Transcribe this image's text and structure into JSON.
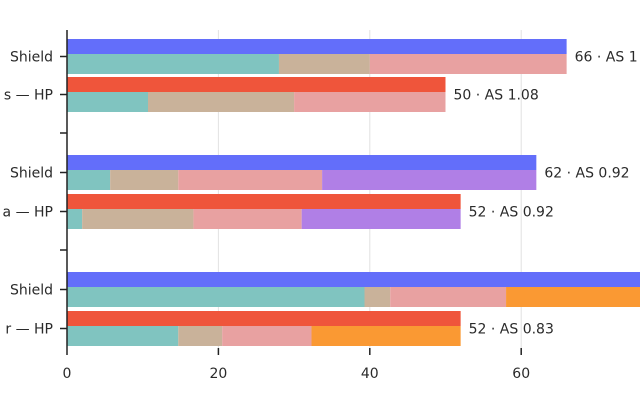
{
  "chart_data": {
    "type": "bar",
    "orientation": "horizontal",
    "stacked": true,
    "xlim": [
      0,
      75
    ],
    "x_ticks": [
      0,
      20,
      40,
      60
    ],
    "grid": "vertical",
    "colors": {
      "shield": "#636efa",
      "hp": "#ef553b",
      "teal": "#80c4c0",
      "tan": "#c9b29a",
      "pink": "#e8a1a1",
      "purple": "#b07fe6",
      "orange": "#fa9933"
    },
    "bars": [
      {
        "label": "Shield",
        "value": 66,
        "annotation": "66 · AS 1",
        "segments": [
          {
            "value": 28,
            "color": "teal"
          },
          {
            "value": 12,
            "color": "tan"
          },
          {
            "value": 26,
            "color": "pink"
          }
        ]
      },
      {
        "label": "s — HP",
        "value": 50,
        "annotation": "50 · AS 1.08",
        "segments": [
          {
            "value": 10.7,
            "color": "teal"
          },
          {
            "value": 19.3,
            "color": "tan"
          },
          {
            "value": 20,
            "color": "pink"
          }
        ]
      },
      {
        "label": "Shield",
        "value": 62,
        "annotation": "62 · AS 0.92",
        "segments": [
          {
            "value": 5.7,
            "color": "teal"
          },
          {
            "value": 9,
            "color": "tan"
          },
          {
            "value": 19,
            "color": "pink"
          },
          {
            "value": 28.3,
            "color": "purple"
          }
        ]
      },
      {
        "label": "a — HP",
        "value": 52,
        "annotation": "52 · AS 0.92",
        "segments": [
          {
            "value": 2,
            "color": "teal"
          },
          {
            "value": 14.7,
            "color": "tan"
          },
          {
            "value": 14.3,
            "color": "pink"
          },
          {
            "value": 21,
            "color": "purple"
          }
        ]
      },
      {
        "label": "Shield",
        "value": 76,
        "annotation": "",
        "segments": [
          {
            "value": 39.3,
            "color": "teal"
          },
          {
            "value": 3.4,
            "color": "tan"
          },
          {
            "value": 15.3,
            "color": "pink"
          },
          {
            "value": 18,
            "color": "orange"
          }
        ]
      },
      {
        "label": "r — HP",
        "value": 52,
        "annotation": "52 · AS 0.83",
        "segments": [
          {
            "value": 14.7,
            "color": "teal"
          },
          {
            "value": 5.8,
            "color": "tan"
          },
          {
            "value": 11.8,
            "color": "pink"
          },
          {
            "value": 19.7,
            "color": "orange"
          }
        ]
      }
    ]
  }
}
